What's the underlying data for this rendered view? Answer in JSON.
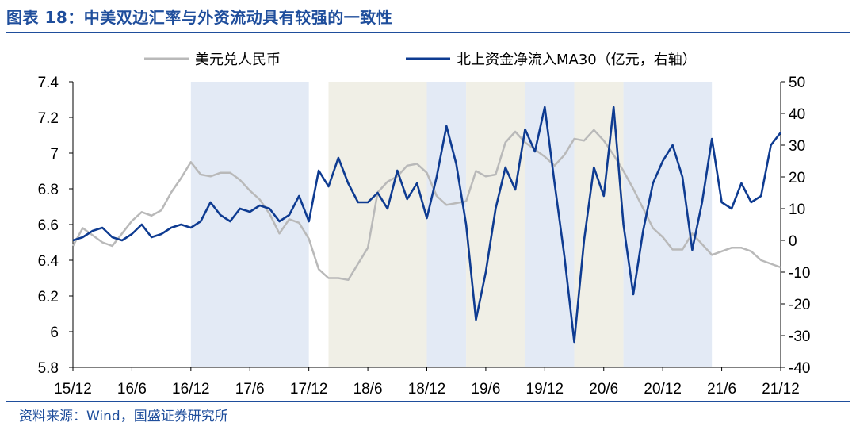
{
  "title": "图表 18：中美双边汇率与外资流动具有较强的一致性",
  "source": "资料来源：Wind，国盛证券研究所",
  "chart_data": {
    "type": "line",
    "colors": {
      "usdcny": "#b9b9b9",
      "northbound": "#0e3b91",
      "shade_blue": "#e3eaf5",
      "shade_beige": "#f0efe6"
    },
    "legend": [
      {
        "name": "美元兑人民币",
        "color": "#b9b9b9"
      },
      {
        "name": "北上资金净流入MA30（亿元，右轴）",
        "color": "#0e3b91"
      }
    ],
    "legend_position": "top",
    "x_ticks": [
      "15/12",
      "16/6",
      "16/12",
      "17/6",
      "17/12",
      "18/6",
      "18/12",
      "19/6",
      "19/12",
      "20/6",
      "20/12",
      "21/6",
      "21/12"
    ],
    "x_range": [
      "2015-12",
      "2021-12"
    ],
    "y_left": {
      "ticks": [
        "7.4",
        "7.2",
        "7",
        "6.8",
        "6.6",
        "6.4",
        "6.2",
        "6",
        "5.8"
      ],
      "range": [
        5.8,
        7.4
      ]
    },
    "y_right": {
      "ticks": [
        "50",
        "40",
        "30",
        "20",
        "10",
        "0",
        "-10",
        "-20",
        "-30",
        "-40"
      ],
      "range": [
        -40,
        50
      ]
    },
    "shaded_periods": [
      {
        "start": "2016-12",
        "end": "2017-12",
        "color": "blue"
      },
      {
        "start": "2018-02",
        "end": "2018-12",
        "color": "beige"
      },
      {
        "start": "2018-12",
        "end": "2019-04",
        "color": "blue"
      },
      {
        "start": "2019-04",
        "end": "2019-10",
        "color": "beige"
      },
      {
        "start": "2019-10",
        "end": "2020-03",
        "color": "blue"
      },
      {
        "start": "2020-03",
        "end": "2020-08",
        "color": "beige"
      },
      {
        "start": "2020-08",
        "end": "2021-05",
        "color": "blue"
      }
    ],
    "series": [
      {
        "name": "美元兑人民币",
        "axis": "left",
        "points": [
          [
            "2015-12",
            6.48
          ],
          [
            "2016-01",
            6.58
          ],
          [
            "2016-02",
            6.54
          ],
          [
            "2016-03",
            6.5
          ],
          [
            "2016-04",
            6.48
          ],
          [
            "2016-05",
            6.55
          ],
          [
            "2016-06",
            6.62
          ],
          [
            "2016-07",
            6.67
          ],
          [
            "2016-08",
            6.65
          ],
          [
            "2016-09",
            6.68
          ],
          [
            "2016-10",
            6.78
          ],
          [
            "2016-11",
            6.86
          ],
          [
            "2016-12",
            6.95
          ],
          [
            "2017-01",
            6.88
          ],
          [
            "2017-02",
            6.87
          ],
          [
            "2017-03",
            6.89
          ],
          [
            "2017-04",
            6.89
          ],
          [
            "2017-05",
            6.85
          ],
          [
            "2017-06",
            6.79
          ],
          [
            "2017-07",
            6.74
          ],
          [
            "2017-08",
            6.66
          ],
          [
            "2017-09",
            6.55
          ],
          [
            "2017-10",
            6.63
          ],
          [
            "2017-11",
            6.61
          ],
          [
            "2017-12",
            6.52
          ],
          [
            "2018-01",
            6.35
          ],
          [
            "2018-02",
            6.3
          ],
          [
            "2018-03",
            6.3
          ],
          [
            "2018-04",
            6.29
          ],
          [
            "2018-05",
            6.38
          ],
          [
            "2018-06",
            6.47
          ],
          [
            "2018-07",
            6.78
          ],
          [
            "2018-08",
            6.84
          ],
          [
            "2018-09",
            6.87
          ],
          [
            "2018-10",
            6.93
          ],
          [
            "2018-11",
            6.94
          ],
          [
            "2018-12",
            6.89
          ],
          [
            "2019-01",
            6.76
          ],
          [
            "2019-02",
            6.71
          ],
          [
            "2019-03",
            6.72
          ],
          [
            "2019-04",
            6.73
          ],
          [
            "2019-05",
            6.9
          ],
          [
            "2019-06",
            6.87
          ],
          [
            "2019-07",
            6.88
          ],
          [
            "2019-08",
            7.06
          ],
          [
            "2019-09",
            7.12
          ],
          [
            "2019-10",
            7.06
          ],
          [
            "2019-11",
            7.02
          ],
          [
            "2019-12",
            6.98
          ],
          [
            "2020-01",
            6.93
          ],
          [
            "2020-02",
            6.99
          ],
          [
            "2020-03",
            7.08
          ],
          [
            "2020-04",
            7.07
          ],
          [
            "2020-05",
            7.13
          ],
          [
            "2020-06",
            7.07
          ],
          [
            "2020-07",
            6.99
          ],
          [
            "2020-08",
            6.9
          ],
          [
            "2020-09",
            6.8
          ],
          [
            "2020-10",
            6.69
          ],
          [
            "2020-11",
            6.58
          ],
          [
            "2020-12",
            6.53
          ],
          [
            "2021-01",
            6.46
          ],
          [
            "2021-02",
            6.46
          ],
          [
            "2021-03",
            6.55
          ],
          [
            "2021-04",
            6.49
          ],
          [
            "2021-05",
            6.43
          ],
          [
            "2021-06",
            6.45
          ],
          [
            "2021-07",
            6.47
          ],
          [
            "2021-08",
            6.47
          ],
          [
            "2021-09",
            6.45
          ],
          [
            "2021-10",
            6.4
          ],
          [
            "2021-11",
            6.38
          ],
          [
            "2021-12",
            6.36
          ]
        ]
      },
      {
        "name": "北上资金净流入MA30（亿元，右轴）",
        "axis": "right",
        "points": [
          [
            "2015-12",
            0
          ],
          [
            "2016-01",
            1
          ],
          [
            "2016-02",
            3
          ],
          [
            "2016-03",
            4
          ],
          [
            "2016-04",
            1
          ],
          [
            "2016-05",
            0
          ],
          [
            "2016-06",
            2
          ],
          [
            "2016-07",
            5
          ],
          [
            "2016-08",
            1
          ],
          [
            "2016-09",
            2
          ],
          [
            "2016-10",
            4
          ],
          [
            "2016-11",
            5
          ],
          [
            "2016-12",
            4
          ],
          [
            "2017-01",
            6
          ],
          [
            "2017-02",
            12
          ],
          [
            "2017-03",
            8
          ],
          [
            "2017-04",
            6
          ],
          [
            "2017-05",
            10
          ],
          [
            "2017-06",
            9
          ],
          [
            "2017-07",
            11
          ],
          [
            "2017-08",
            10
          ],
          [
            "2017-09",
            6
          ],
          [
            "2017-10",
            8
          ],
          [
            "2017-11",
            14
          ],
          [
            "2017-12",
            6
          ],
          [
            "2018-01",
            22
          ],
          [
            "2018-02",
            17
          ],
          [
            "2018-03",
            26
          ],
          [
            "2018-04",
            18
          ],
          [
            "2018-05",
            12
          ],
          [
            "2018-06",
            12
          ],
          [
            "2018-07",
            15
          ],
          [
            "2018-08",
            10
          ],
          [
            "2018-09",
            22
          ],
          [
            "2018-10",
            13
          ],
          [
            "2018-11",
            18
          ],
          [
            "2018-12",
            7
          ],
          [
            "2019-01",
            20
          ],
          [
            "2019-02",
            36
          ],
          [
            "2019-03",
            24
          ],
          [
            "2019-04",
            5
          ],
          [
            "2019-05",
            -25
          ],
          [
            "2019-06",
            -10
          ],
          [
            "2019-07",
            10
          ],
          [
            "2019-08",
            23
          ],
          [
            "2019-09",
            16
          ],
          [
            "2019-10",
            35
          ],
          [
            "2019-11",
            28
          ],
          [
            "2019-12",
            42
          ],
          [
            "2020-01",
            18
          ],
          [
            "2020-02",
            -5
          ],
          [
            "2020-03",
            -32
          ],
          [
            "2020-04",
            0
          ],
          [
            "2020-05",
            23
          ],
          [
            "2020-06",
            14
          ],
          [
            "2020-07",
            42
          ],
          [
            "2020-08",
            5
          ],
          [
            "2020-09",
            -17
          ],
          [
            "2020-10",
            3
          ],
          [
            "2020-11",
            18
          ],
          [
            "2020-12",
            25
          ],
          [
            "2021-01",
            30
          ],
          [
            "2021-02",
            20
          ],
          [
            "2021-03",
            -3
          ],
          [
            "2021-04",
            12
          ],
          [
            "2021-05",
            32
          ],
          [
            "2021-06",
            12
          ],
          [
            "2021-07",
            10
          ],
          [
            "2021-08",
            18
          ],
          [
            "2021-09",
            12
          ],
          [
            "2021-10",
            14
          ],
          [
            "2021-11",
            30
          ],
          [
            "2021-12",
            34
          ]
        ]
      }
    ]
  }
}
